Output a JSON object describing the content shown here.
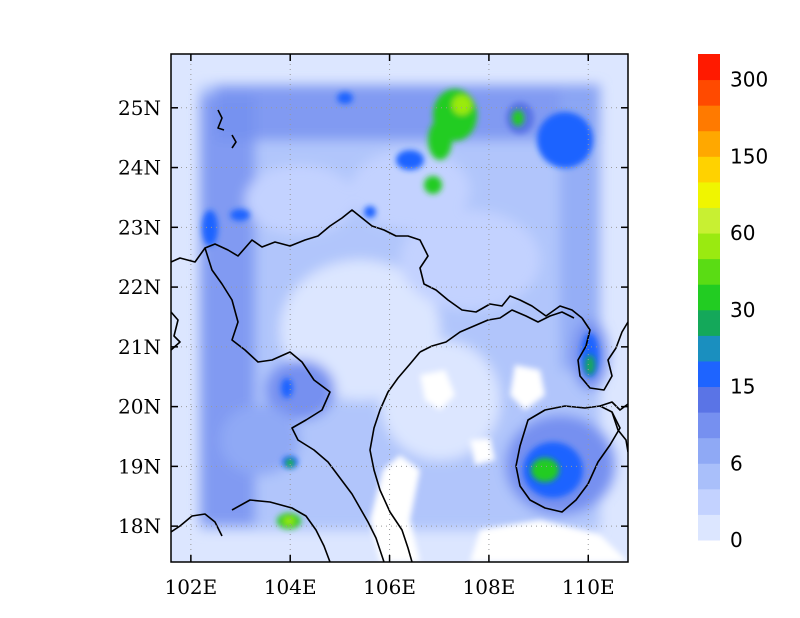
{
  "chart_data": {
    "type": "heatmap",
    "title": "",
    "xlabel": "",
    "ylabel": "",
    "x_ticks": [
      "102E",
      "104E",
      "106E",
      "108E",
      "110E"
    ],
    "y_ticks": [
      "18N",
      "19N",
      "20N",
      "21N",
      "22N",
      "23N",
      "24N",
      "25N"
    ],
    "x_tick_values": [
      102,
      104,
      106,
      108,
      110
    ],
    "y_tick_values": [
      18,
      19,
      20,
      21,
      22,
      23,
      24,
      25
    ],
    "xlim": [
      101.6,
      110.8
    ],
    "ylim": [
      17.4,
      25.9
    ],
    "grid": "dotted",
    "colorbar": {
      "levels": [
        0,
        3,
        6,
        9,
        12,
        15,
        20,
        25,
        30,
        40,
        50,
        60,
        80,
        100,
        150,
        200,
        250,
        300
      ],
      "colors": [
        "#dce6ff",
        "#c3d2ff",
        "#a9bffa",
        "#8fa9f5",
        "#7690f0",
        "#5a74e6",
        "#1e64ff",
        "#1a8fbf",
        "#14a85a",
        "#22cc22",
        "#5adc14",
        "#9aea10",
        "#c8f032",
        "#f0f500",
        "#ffd200",
        "#ffa800",
        "#ff7a00",
        "#ff4a00",
        "#ff1a00"
      ],
      "labels": [
        "0",
        "6",
        "15",
        "30",
        "60",
        "150",
        "300"
      ]
    },
    "features": [
      {
        "name": "northern hotspot",
        "lon": 107.6,
        "lat": 25.0,
        "value": 60
      },
      {
        "name": "northern hotspot south",
        "lon": 107.1,
        "lat": 23.8,
        "value": 30
      },
      {
        "name": "hainan hotspot",
        "lon": 109.3,
        "lat": 19.0,
        "value": 40
      },
      {
        "name": "leizhou hotspot",
        "lon": 110.2,
        "lat": 20.9,
        "value": 30
      },
      {
        "name": "southwest hotspot",
        "lon": 104.0,
        "lat": 18.1,
        "value": 60
      }
    ]
  }
}
